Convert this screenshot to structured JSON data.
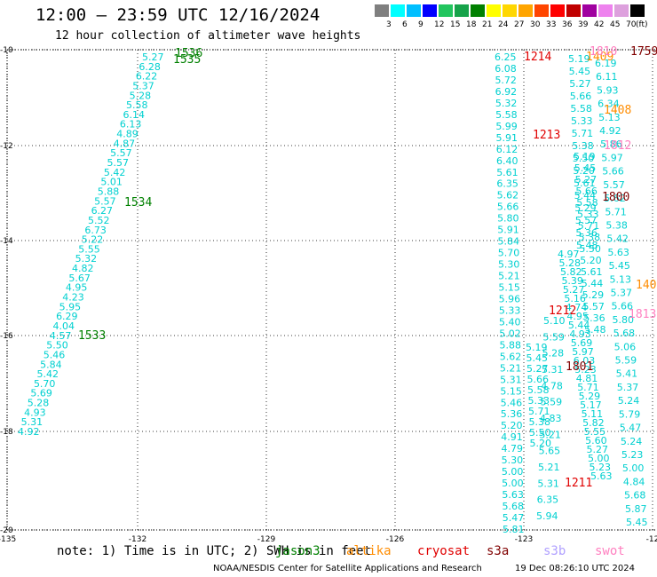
{
  "title": "12:00 – 23:59 UTC 12/16/2024",
  "subtitle": "12 hour collection of altimeter wave heights",
  "legend": {
    "unit": "(ft)",
    "bins": [
      {
        "label": "3",
        "color": "#7f7f7f"
      },
      {
        "label": "6",
        "color": "#00ffff"
      },
      {
        "label": "9",
        "color": "#00bfff"
      },
      {
        "label": "12",
        "color": "#0000ff"
      },
      {
        "label": "15",
        "color": "#22c55e"
      },
      {
        "label": "18",
        "color": "#16a34a"
      },
      {
        "label": "21",
        "color": "#008000"
      },
      {
        "label": "24",
        "color": "#ffff00"
      },
      {
        "label": "27",
        "color": "#ffd700"
      },
      {
        "label": "30",
        "color": "#ffa500"
      },
      {
        "label": "33",
        "color": "#ff4500"
      },
      {
        "label": "36",
        "color": "#ff0000"
      },
      {
        "label": "39",
        "color": "#c00000"
      },
      {
        "label": "42",
        "color": "#a000a0"
      },
      {
        "label": "45",
        "color": "#ee82ee"
      },
      {
        "label": "70",
        "color": "#dda0dd"
      },
      {
        "label": "",
        "color": "#000000"
      }
    ]
  },
  "axes": {
    "lon_ticks": [
      "-135",
      "-132",
      "-129",
      "-126",
      "-123",
      "-12"
    ],
    "lat_ticks": [
      "-10",
      "-12",
      "-14",
      "-16",
      "-18",
      "-20"
    ]
  },
  "colors": {
    "cyan": "#00d0d0",
    "green": "#008000",
    "red": "#e00000",
    "darkred": "#800000",
    "orange": "#ff8c00",
    "pink": "#ff80c0",
    "lavender": "#b0a0ff"
  },
  "tracks": {
    "track_a": [
      "5.27",
      "6.28",
      "6.22",
      "5.37",
      "5.28",
      "5.58",
      "6.14",
      "6.13",
      "4.89",
      "4.87",
      "5.57",
      "5.57",
      "5.42",
      "5.01",
      "5.88",
      "5.57",
      "6.27",
      "5.52",
      "6.73",
      "5.22",
      "5.55",
      "5.32",
      "4.82",
      "5.67",
      "4.95",
      "4.23",
      "5.95",
      "6.29",
      "4.04",
      "4.57",
      "5.50",
      "5.46",
      "5.84",
      "5.42",
      "5.70",
      "5.69",
      "5.28",
      "4.93",
      "5.31",
      "4.92"
    ],
    "track_b": [
      "6.25",
      "6.08",
      "5.72",
      "6.92",
      "5.32",
      "5.58",
      "5.99",
      "5.91",
      "6.12",
      "6.40",
      "5.61",
      "6.35",
      "5.62",
      "5.66",
      "5.80",
      "5.91",
      "5.84",
      "5.70",
      "5.30",
      "5.21",
      "5.15",
      "5.96",
      "5.33",
      "5.40",
      "5.02",
      "5.88",
      "5.62",
      "5.21",
      "5.31",
      "5.15",
      "5.46",
      "5.36",
      "5.20",
      "4.91",
      "4.79",
      "5.30",
      "5.00",
      "5.00",
      "5.63",
      "5.68",
      "5.47",
      "5.81"
    ],
    "track_c": [
      "5.10",
      "5.59",
      "5.28",
      "5.31",
      "4.78",
      "5.59",
      "4.83",
      "5.21",
      "5.65",
      "5.21",
      "5.31",
      "6.35",
      "5.94"
    ],
    "track_d": [
      "6.19",
      "6.11",
      "5.93",
      "6.34",
      "5.13",
      "4.92",
      "5.86",
      "5.97",
      "5.66",
      "5.57",
      "5.62",
      "5.71",
      "5.38",
      "5.42",
      "5.63",
      "5.45",
      "5.13",
      "5.37",
      "5.66",
      "5.80",
      "5.68",
      "5.06",
      "5.59",
      "5.41",
      "5.37",
      "5.24",
      "5.79",
      "5.47",
      "5.24",
      "5.23",
      "5.00",
      "4.84",
      "5.68",
      "5.87",
      "5.45"
    ],
    "track_e": [
      "4.97",
      "5.28",
      "5.82",
      "5.39",
      "5.27",
      "5.16",
      "4.74",
      "4.95",
      "5.44",
      "4.93",
      "5.69",
      "5.97",
      "6.03",
      "5.23",
      "4.81",
      "5.71",
      "5.29",
      "5.17",
      "5.11",
      "5.82",
      "5.55",
      "5.60",
      "5.27",
      "5.00",
      "5.23",
      "5.63"
    ]
  },
  "time_labels": [
    {
      "text": "1536",
      "color": "green"
    },
    {
      "text": "1535",
      "color": "green"
    },
    {
      "text": "1534",
      "color": "green"
    },
    {
      "text": "1533",
      "color": "green"
    },
    {
      "text": "1214",
      "color": "red"
    },
    {
      "text": "1213",
      "color": "red"
    },
    {
      "text": "1212",
      "color": "red"
    },
    {
      "text": "1211",
      "color": "red"
    },
    {
      "text": "1801",
      "color": "darkred"
    },
    {
      "text": "1800",
      "color": "darkred"
    },
    {
      "text": "1759",
      "color": "darkred"
    },
    {
      "text": "1409",
      "color": "orange"
    },
    {
      "text": "1408",
      "color": "orange"
    },
    {
      "text": "140",
      "color": "orange"
    },
    {
      "text": "1812",
      "color": "pink"
    },
    {
      "text": "1813",
      "color": "pink"
    },
    {
      "text": "1810",
      "color": "pink"
    }
  ],
  "footer": {
    "note": "note: 1) Time is in UTC; 2) SWH is in feet",
    "satellites": [
      {
        "name": "jason3",
        "color": "#008000"
      },
      {
        "name": "altika",
        "color": "#ff8c00"
      },
      {
        "name": "cryosat",
        "color": "#e00000"
      },
      {
        "name": "s3a",
        "color": "#800000"
      },
      {
        "name": "s3b",
        "color": "#b0a0ff"
      },
      {
        "name": "swot",
        "color": "#ff80c0"
      }
    ],
    "credit": "NOAA/NESDIS Center for Satellite Applications and Research",
    "date": "19 Dec 08:26:10 UTC 2024"
  }
}
